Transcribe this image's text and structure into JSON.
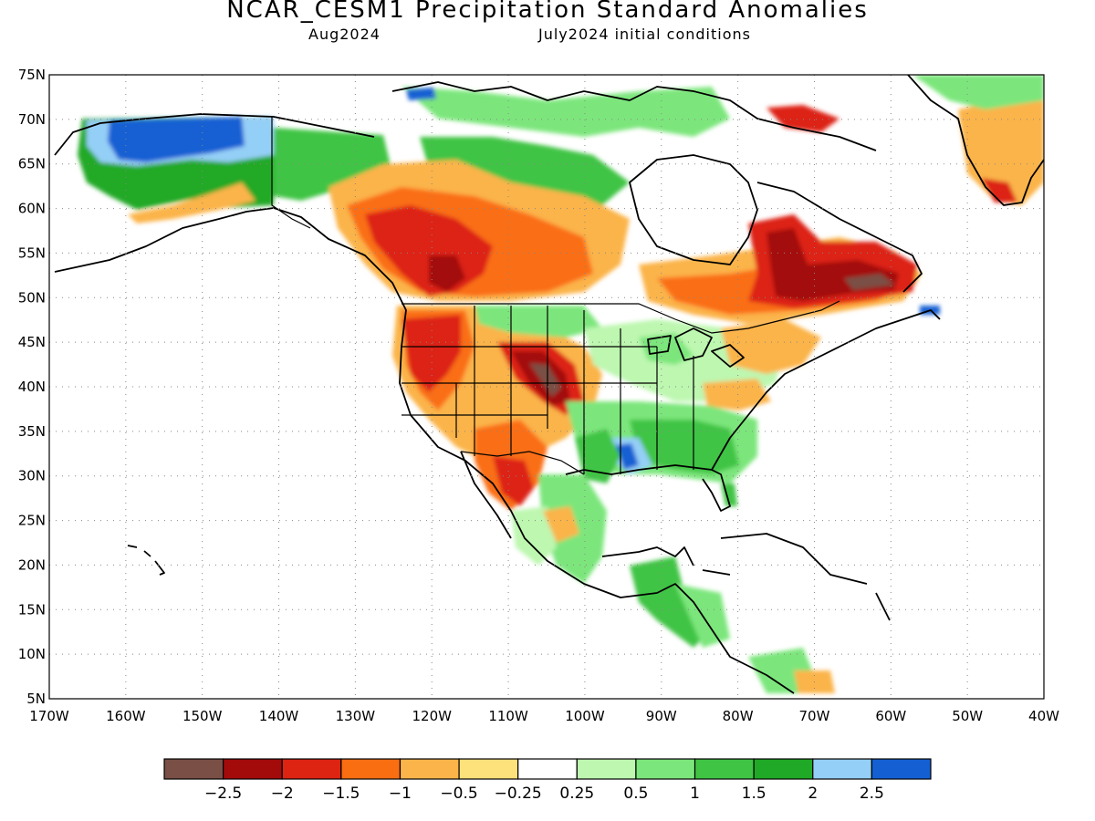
{
  "header": {
    "title": "NCAR_CESM1 Precipitation Standard Anomalies",
    "valid_month": "Aug2024",
    "init": "July2024 initial conditions"
  },
  "map": {
    "lat_labels": [
      "75N",
      "70N",
      "65N",
      "60N",
      "55N",
      "50N",
      "45N",
      "40N",
      "35N",
      "30N",
      "25N",
      "20N",
      "15N",
      "10N",
      "5N"
    ],
    "lon_labels": [
      "170W",
      "160W",
      "150W",
      "140W",
      "130W",
      "120W",
      "110W",
      "100W",
      "90W",
      "80W",
      "70W",
      "60W",
      "50W",
      "40W"
    ],
    "lat_range": [
      5,
      75
    ],
    "lon_range": [
      -170,
      -40
    ],
    "gridlines": "dotted",
    "coastline_color": "#000000",
    "ocean_color": "#ffffff"
  },
  "colorbar": {
    "colors": [
      "#7a4f45",
      "#a30b0b",
      "#dd2413",
      "#fa6e12",
      "#fbb449",
      "#fde17a",
      "#ffffff",
      "#bdf7b0",
      "#7be67b",
      "#3fc444",
      "#20a927",
      "#94cff7",
      "#1460d3"
    ],
    "labels": [
      "−2.5",
      "−2",
      "−1.5",
      "−1",
      "−0.5",
      "−0.25",
      "0.25",
      "0.5",
      "1",
      "1.5",
      "2",
      "2.5"
    ]
  }
}
